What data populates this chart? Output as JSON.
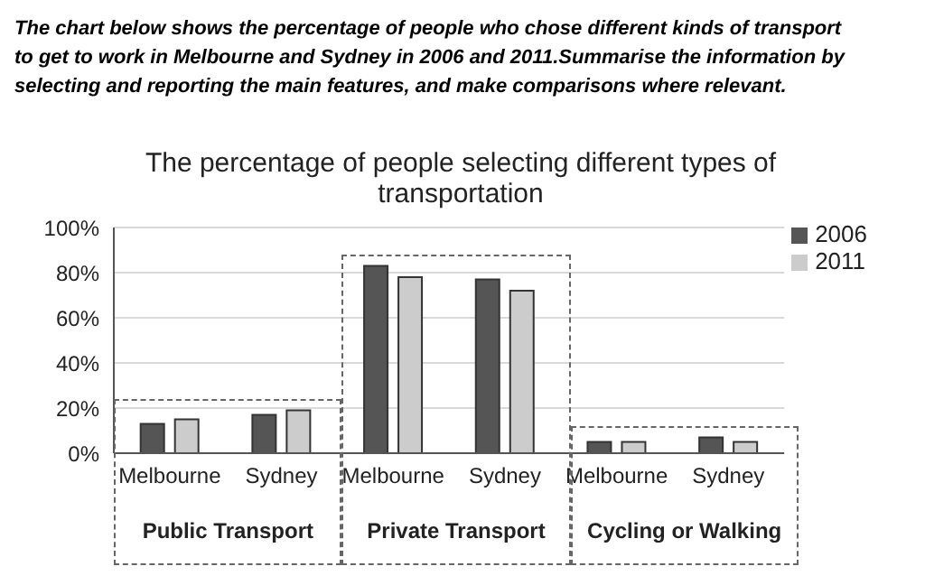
{
  "chart_data": {
    "type": "bar",
    "subtitle": "The chart below shows the percentage of people who chose different kinds of transport to get to work in Melbourne and Sydney in 2006 and 2011.Summarise the information by selecting and reporting the main features, and make comparisons where relevant.",
    "title": "The percentage of people selecting different types of transportation",
    "categories": [
      "Melbourne",
      "Sydney",
      "Melbourne",
      "Sydney",
      "Melbourne",
      "Sydney"
    ],
    "series": [
      {
        "name": "2006",
        "color": "#555555",
        "values": [
          13,
          17,
          83,
          77,
          5,
          7
        ]
      },
      {
        "name": "2011",
        "color": "#cccccc",
        "values": [
          15,
          19,
          78,
          72,
          5,
          5
        ]
      }
    ],
    "annotations": [
      "Public Transport",
      "Private Transport",
      "Cycling or Walking"
    ],
    "ylim": [
      0,
      100
    ],
    "yticks": [
      {
        "value": 0,
        "label": "0%"
      },
      {
        "value": 20,
        "label": "20%"
      },
      {
        "value": 40,
        "label": "40%"
      },
      {
        "value": 60,
        "label": "60%"
      },
      {
        "value": 80,
        "label": "80%"
      },
      {
        "value": 100,
        "label": "100%"
      }
    ],
    "grid": "y",
    "legend": "top right"
  }
}
